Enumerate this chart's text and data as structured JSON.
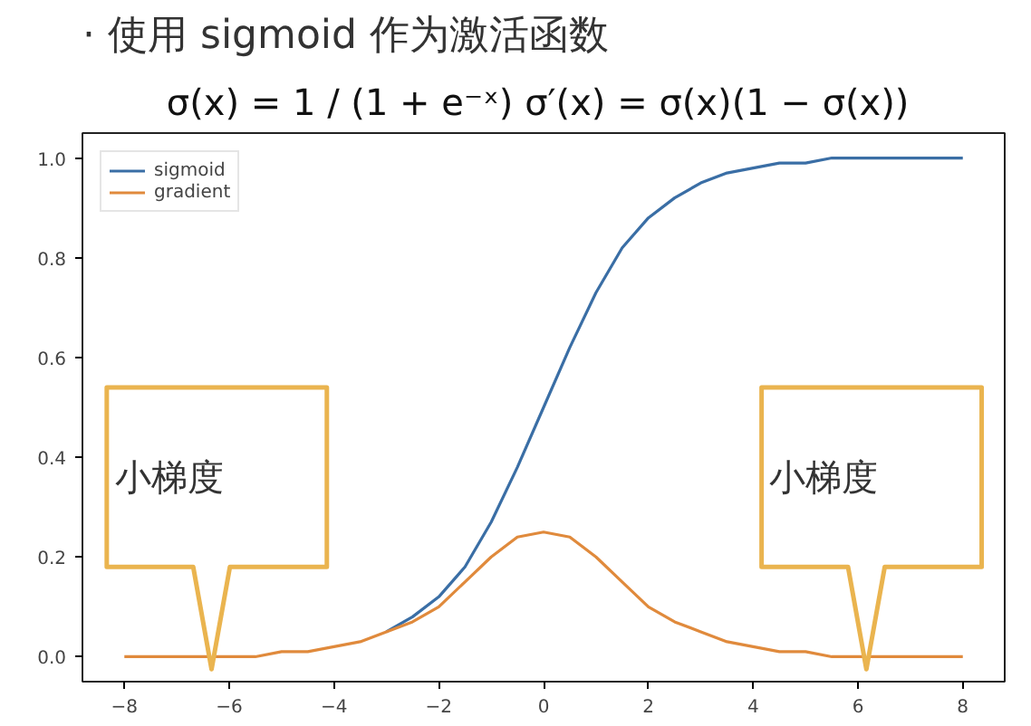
{
  "chart_data": {
    "type": "line",
    "title": "· 使用 sigmoid 作为激活函数",
    "subtitle": "σ(x) = 1 / (1 + e⁻ˣ)  σ′(x) = σ(x)(1 − σ(x))",
    "x": [
      -8,
      -7.5,
      -7,
      -6.5,
      -6,
      -5.5,
      -5,
      -4.5,
      -4,
      -3.5,
      -3,
      -2.5,
      -2,
      -1.5,
      -1,
      -0.5,
      0,
      0.5,
      1,
      1.5,
      2,
      2.5,
      3,
      3.5,
      4,
      4.5,
      5,
      5.5,
      6,
      6.5,
      7,
      7.5,
      8
    ],
    "series": [
      {
        "name": "sigmoid",
        "color": "#3a6ea5",
        "values": [
          null,
          null,
          null,
          null,
          null,
          null,
          null,
          null,
          null,
          null,
          0.05,
          0.08,
          0.12,
          0.18,
          0.27,
          0.38,
          0.5,
          0.62,
          0.73,
          0.82,
          0.88,
          0.92,
          0.95,
          0.97,
          0.98,
          0.99,
          0.99,
          1,
          1,
          1,
          1,
          1,
          1
        ]
      },
      {
        "name": "gradient",
        "color": "#e08a3c",
        "values": [
          0,
          0,
          0,
          0,
          0,
          0,
          0.01,
          0.01,
          0.02,
          0.03,
          0.05,
          0.07,
          0.1,
          0.15,
          0.2,
          0.24,
          0.25,
          0.24,
          0.2,
          0.15,
          0.1,
          0.07,
          0.05,
          0.03,
          0.02,
          0.01,
          0.01,
          0,
          0,
          0,
          0,
          0,
          0
        ]
      }
    ],
    "annotations": [
      "小梯度",
      "小梯度"
    ],
    "xlim": [
      -8.8,
      8.8
    ],
    "xticks": [
      -8,
      -6,
      -4,
      -2,
      0,
      2,
      4,
      6,
      8
    ],
    "ylim": [
      -0.05,
      1.05
    ],
    "yticks": [
      {
        "value": 0,
        "label": "0.0"
      },
      {
        "value": 0.2,
        "label": "0.2"
      },
      {
        "value": 0.4,
        "label": "0.4"
      },
      {
        "value": 0.6,
        "label": "0.6"
      },
      {
        "value": 0.8,
        "label": "0.8"
      },
      {
        "value": 1,
        "label": "1.0"
      }
    ],
    "legend": "top left",
    "grid": false,
    "line_style": "solid"
  }
}
